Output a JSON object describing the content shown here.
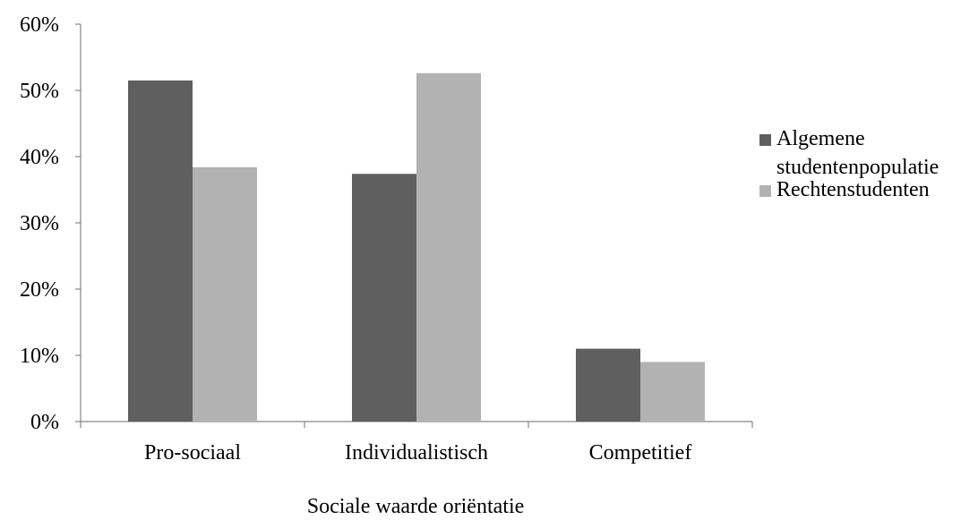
{
  "chart_data": {
    "type": "bar",
    "title": "",
    "xlabel": "Sociale waarde oriëntatie",
    "ylabel": "",
    "categories": [
      "Pro-sociaal",
      "Individualistisch",
      "Competitief"
    ],
    "series": [
      {
        "name": "Algemene studentenpopulatie",
        "values": [
          51.5,
          37.4,
          11.0
        ],
        "color": "#5f5f5f"
      },
      {
        "name": "Rechtenstudenten",
        "values": [
          38.4,
          52.6,
          9.0
        ],
        "color": "#b2b2b2"
      }
    ],
    "legend_lines": [
      [
        "Algemene",
        "studentenpopulatie"
      ],
      [
        "Rechtenstudenten"
      ]
    ],
    "yticks": [
      "0%",
      "10%",
      "20%",
      "30%",
      "40%",
      "50%",
      "60%"
    ],
    "ylim": [
      0,
      60
    ],
    "grid": false,
    "legend_position": "right"
  }
}
